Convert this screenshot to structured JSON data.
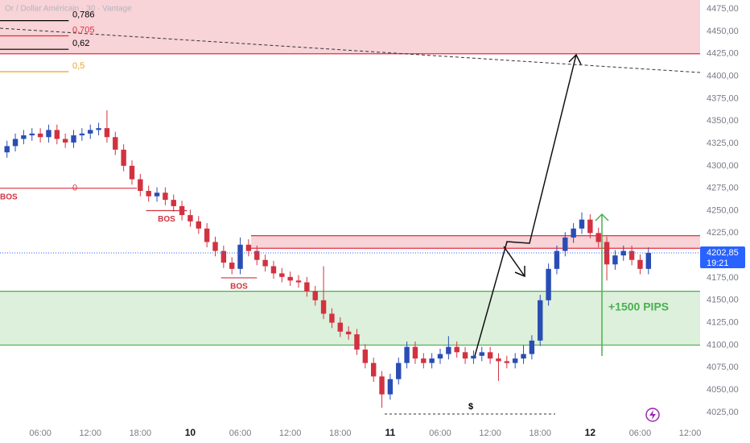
{
  "chart_data": {
    "type": "candlestick",
    "title": "Or / Dollar Américain · 30 · Vantage",
    "up_color": "#2a4db4",
    "down_color": "#d23240",
    "open": [
      4315,
      4322,
      4330,
      4334,
      4336,
      4332,
      4340,
      4330,
      4326,
      4334,
      4336,
      4340,
      4342,
      4332,
      4318,
      4300,
      4285,
      4272,
      4266,
      4270,
      4262,
      4255,
      4245,
      4238,
      4230,
      4215,
      4205,
      4192,
      4185,
      4212,
      4205,
      4195,
      4188,
      4180,
      4176,
      4172,
      4170,
      4160,
      4150,
      4135,
      4125,
      4115,
      4112,
      4095,
      4080,
      4065,
      4045,
      4062,
      4080,
      4098,
      4085,
      4080,
      4085,
      4090,
      4098,
      4092,
      4085,
      4088,
      4092,
      4085,
      4082,
      4080,
      4085,
      4090,
      4105,
      4150,
      4185,
      4205,
      4220,
      4230,
      4240,
      4225,
      4215,
      4190,
      4200,
      4205,
      4195,
      4185
    ],
    "high": [
      4328,
      4336,
      4340,
      4342,
      4342,
      4346,
      4346,
      4336,
      4340,
      4342,
      4346,
      4348,
      4362,
      4338,
      4324,
      4306,
      4291,
      4278,
      4276,
      4276,
      4268,
      4261,
      4251,
      4244,
      4236,
      4221,
      4211,
      4198,
      4220,
      4218,
      4211,
      4201,
      4194,
      4186,
      4182,
      4178,
      4176,
      4166,
      4188,
      4141,
      4131,
      4121,
      4118,
      4101,
      4086,
      4071,
      4068,
      4086,
      4104,
      4104,
      4091,
      4091,
      4096,
      4110,
      4104,
      4098,
      4094,
      4098,
      4098,
      4091,
      4088,
      4091,
      4100,
      4111,
      4156,
      4191,
      4211,
      4226,
      4236,
      4248,
      4246,
      4231,
      4221,
      4206,
      4211,
      4211,
      4201,
      4209
    ],
    "low": [
      4309,
      4316,
      4324,
      4328,
      4326,
      4326,
      4324,
      4320,
      4320,
      4328,
      4330,
      4334,
      4326,
      4312,
      4294,
      4279,
      4266,
      4260,
      4260,
      4256,
      4249,
      4239,
      4232,
      4224,
      4209,
      4199,
      4186,
      4179,
      4179,
      4199,
      4189,
      4182,
      4174,
      4170,
      4166,
      4164,
      4154,
      4144,
      4129,
      4119,
      4109,
      4106,
      4089,
      4074,
      4059,
      4030,
      4039,
      4056,
      4074,
      4079,
      4074,
      4074,
      4079,
      4084,
      4086,
      4079,
      4079,
      4082,
      4079,
      4060,
      4074,
      4074,
      4079,
      4084,
      4099,
      4144,
      4179,
      4199,
      4214,
      4224,
      4219,
      4209,
      4172,
      4184,
      4194,
      4189,
      4179,
      4179
    ],
    "close": [
      4322,
      4330,
      4334,
      4336,
      4332,
      4340,
      4330,
      4326,
      4334,
      4336,
      4340,
      4342,
      4332,
      4318,
      4300,
      4285,
      4272,
      4266,
      4270,
      4262,
      4255,
      4245,
      4238,
      4230,
      4215,
      4205,
      4192,
      4185,
      4212,
      4205,
      4195,
      4188,
      4180,
      4176,
      4172,
      4170,
      4160,
      4150,
      4135,
      4125,
      4115,
      4112,
      4095,
      4080,
      4065,
      4045,
      4062,
      4080,
      4098,
      4085,
      4080,
      4085,
      4090,
      4098,
      4092,
      4085,
      4088,
      4092,
      4085,
      4082,
      4080,
      4085,
      4090,
      4105,
      4150,
      4185,
      4205,
      4220,
      4230,
      4240,
      4225,
      4215,
      4190,
      4200,
      4205,
      4195,
      4185,
      4202.85
    ],
    "xlim": [
      -0.84,
      83.2
    ],
    "xticks": [
      {
        "value": 4,
        "label": "06:00"
      },
      {
        "value": 10,
        "label": "12:00"
      },
      {
        "value": 16,
        "label": "18:00"
      },
      {
        "value": 22,
        "label": "10"
      },
      {
        "value": 28,
        "label": "06:00"
      },
      {
        "value": 34,
        "label": "12:00"
      },
      {
        "value": 40,
        "label": "18:00"
      },
      {
        "value": 46,
        "label": "11"
      },
      {
        "value": 52,
        "label": "06:00"
      },
      {
        "value": 58,
        "label": "12:00"
      },
      {
        "value": 64,
        "label": "18:00"
      },
      {
        "value": 70,
        "label": "12"
      },
      {
        "value": 76,
        "label": "06:00"
      },
      {
        "value": 82,
        "label": "12:00"
      }
    ],
    "ylim": [
      4015,
      4485
    ],
    "yticks": [
      {
        "value": 4475,
        "label": "4475,00"
      },
      {
        "value": 4450,
        "label": "4450,00"
      },
      {
        "value": 4425,
        "label": "4425,00"
      },
      {
        "value": 4400,
        "label": "4400,00"
      },
      {
        "value": 4375,
        "label": "4375,00"
      },
      {
        "value": 4350,
        "label": "4350,00"
      },
      {
        "value": 4325,
        "label": "4325,00"
      },
      {
        "value": 4300,
        "label": "4300,00"
      },
      {
        "value": 4275,
        "label": "4275,00"
      },
      {
        "value": 4250,
        "label": "4250,00"
      },
      {
        "value": 4225,
        "label": "4225,00"
      },
      {
        "value": 4200,
        "label": "4200,00"
      },
      {
        "value": 4175,
        "label": "4175,00"
      },
      {
        "value": 4150,
        "label": "4150,00"
      },
      {
        "value": 4125,
        "label": "4125,00"
      },
      {
        "value": 4100,
        "label": "4100,00"
      },
      {
        "value": 4075,
        "label": "4075,00"
      },
      {
        "value": 4050,
        "label": "4050,00"
      },
      {
        "value": 4025,
        "label": "4025,00"
      }
    ],
    "zones": [
      {
        "from": 4425,
        "to": 4485,
        "start": -0.84,
        "color": "#f8d3d7",
        "line": "#e03040"
      },
      {
        "from": 4208,
        "to": 4222,
        "start": 29.3,
        "color": "#f8d3d7",
        "line": "#e03040"
      },
      {
        "from": 4100,
        "to": 4160,
        "start": -0.84,
        "color": "#dcf0dc",
        "line": "#4caf50"
      }
    ],
    "fib_levels": [
      {
        "value": 0.786,
        "label": "0,786",
        "price": 4462,
        "color": "#000000",
        "end": 7.4
      },
      {
        "value": 0.705,
        "label": "0,705",
        "price": 4445,
        "color": "#e03040",
        "end": 7.4
      },
      {
        "value": 0.62,
        "label": "0,62",
        "price": 4430,
        "color": "#000000",
        "end": 7.4
      },
      {
        "value": 0.5,
        "label": "0,5",
        "price": 4405,
        "color": "#f0a020",
        "end": 7.4
      },
      {
        "value": 0,
        "label": "0",
        "price": 4275,
        "color": "#e03040",
        "end": 15.6
      }
    ],
    "bos": [
      {
        "label": "BOS",
        "price": 4275,
        "from": -0.84,
        "to": -0.84
      },
      {
        "label": "BOS",
        "price": 4250,
        "from": 16.7,
        "to": 21.6
      },
      {
        "label": "BOS",
        "price": 4175,
        "from": 25.7,
        "to": 30
      }
    ],
    "gain_label": "+1500 PIPS",
    "liquidity_label": "$",
    "price_tag": {
      "value": 4202.85,
      "label": "4202,85"
    },
    "countdown": "19:21"
  }
}
